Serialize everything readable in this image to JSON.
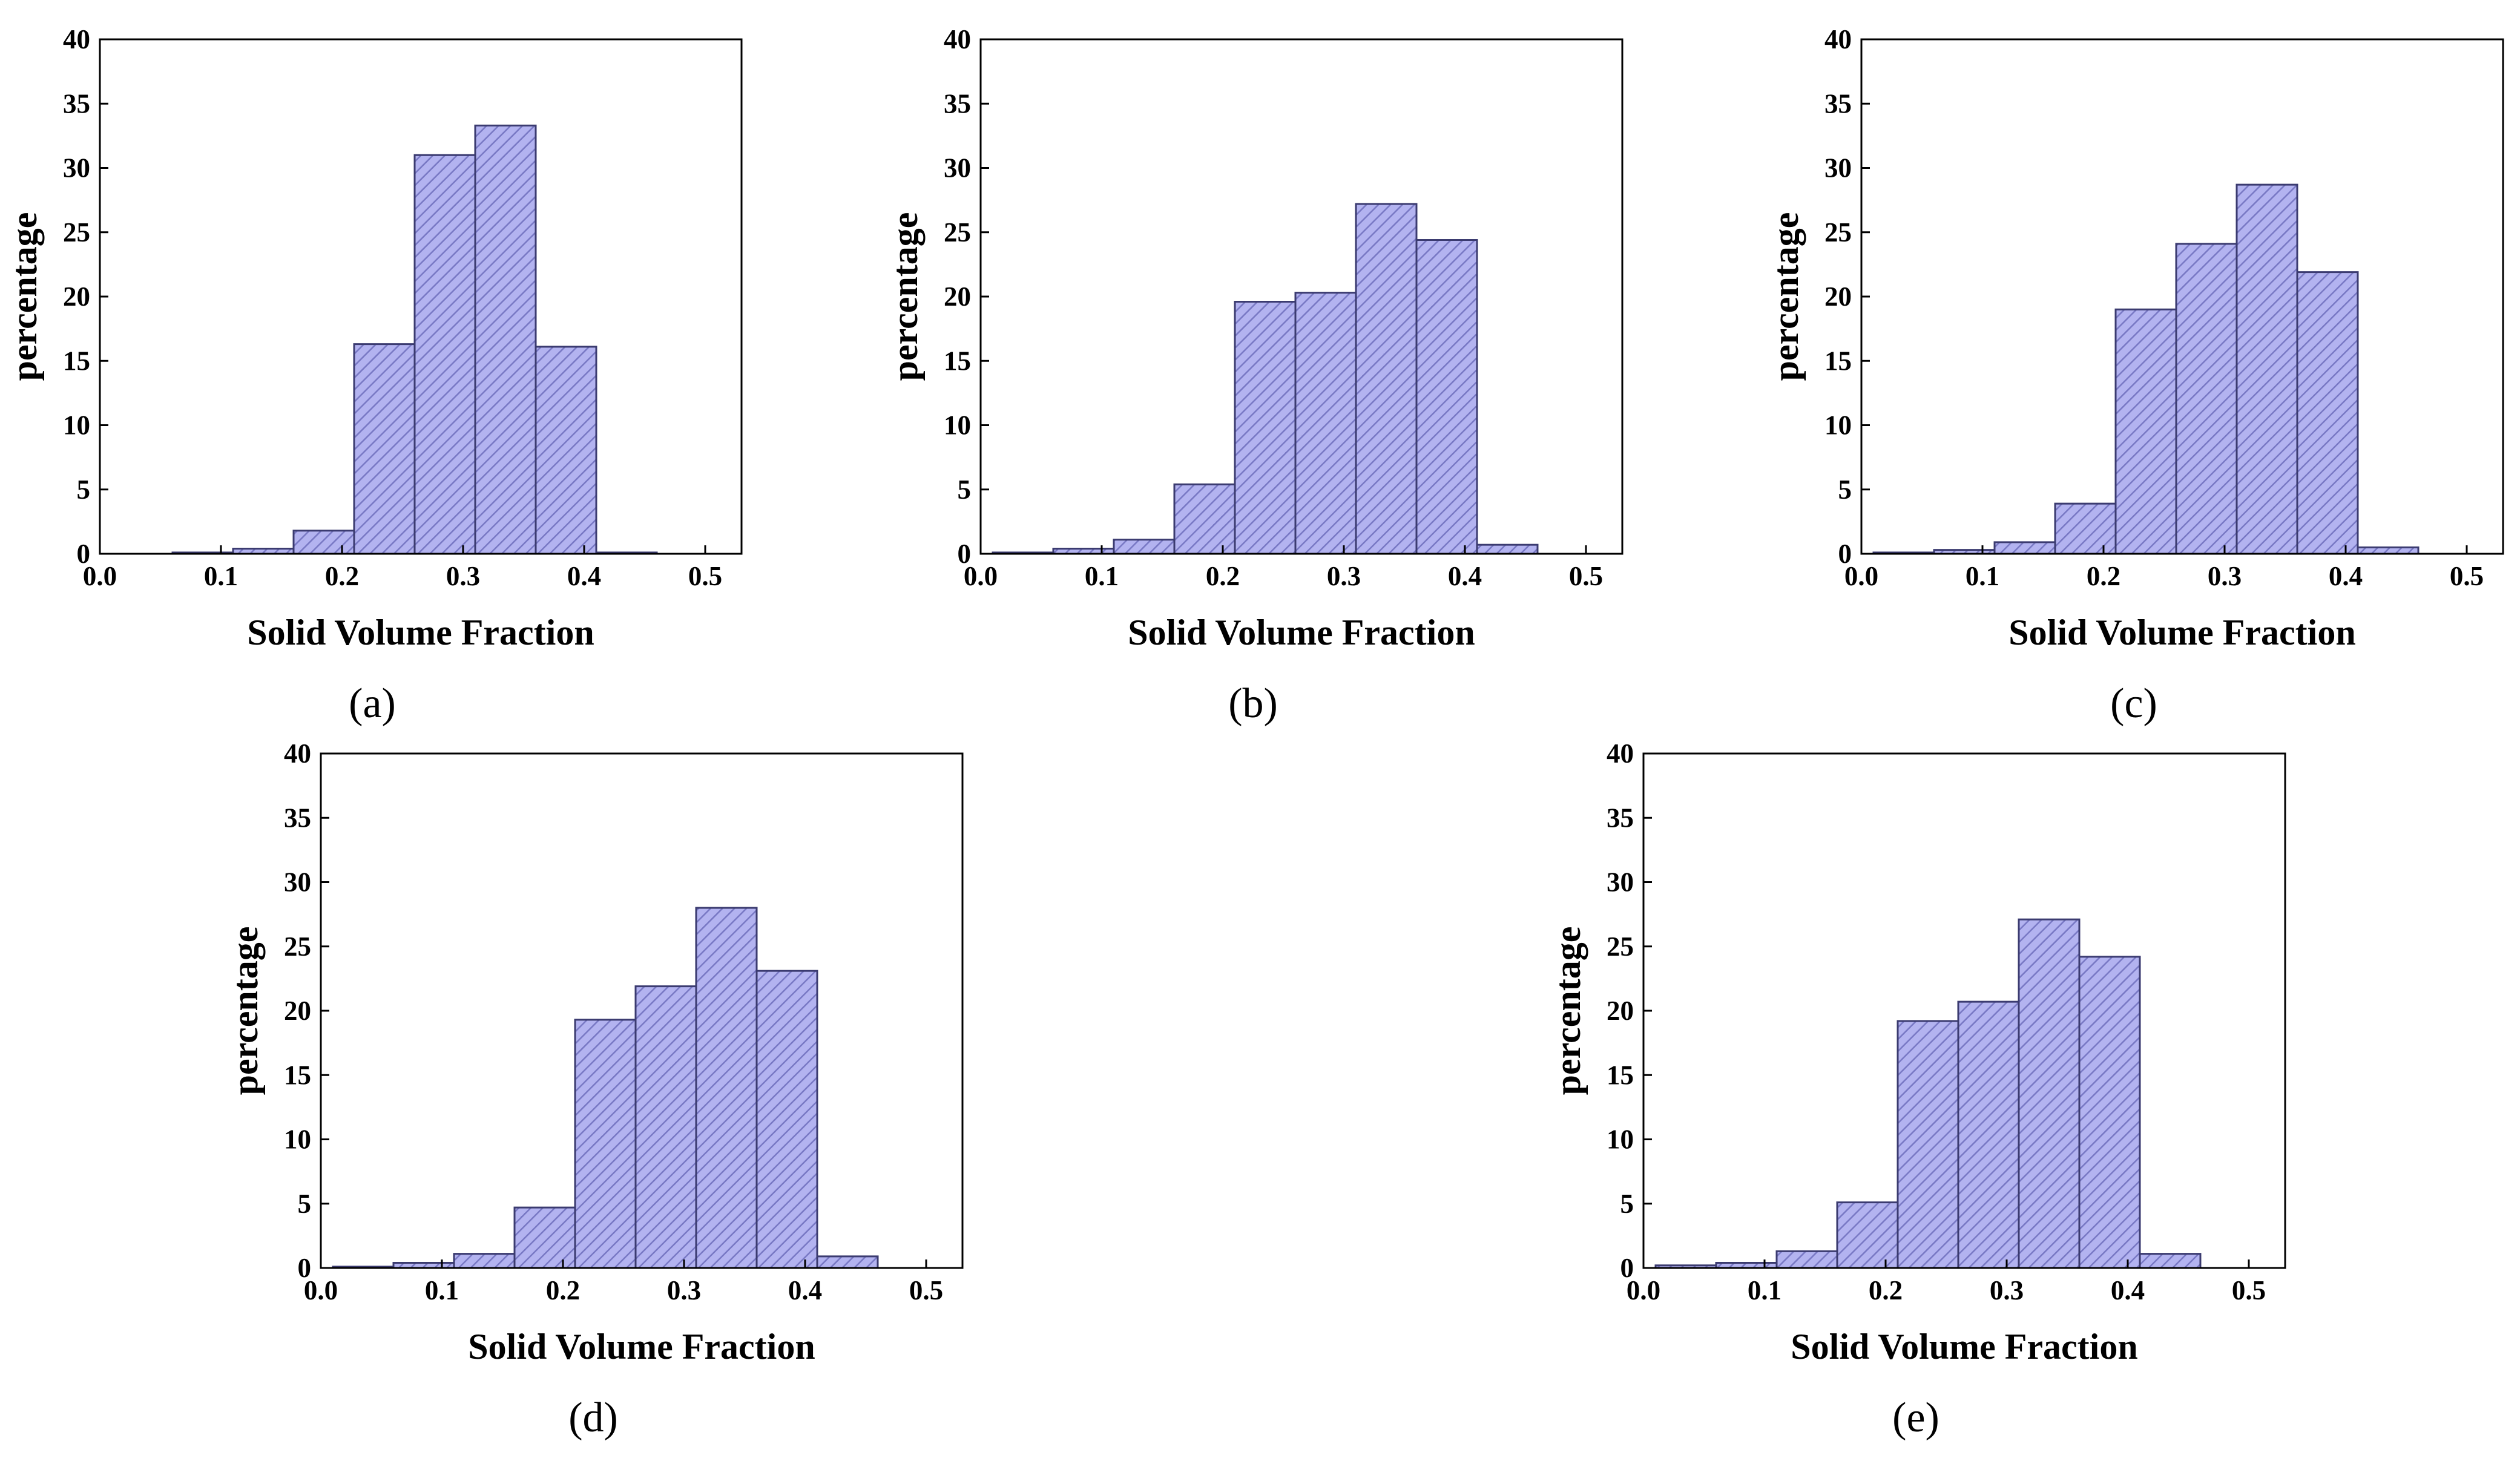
{
  "colors": {
    "bar_fill": "#b3b3f0",
    "bar_edge": "#3b3b70",
    "hatch": "#7878c4",
    "axis": "#000000",
    "background": "#ffffff"
  },
  "chart_data": [
    {
      "type": "bar",
      "panel_label": "(a)",
      "xlabel": "Solid Volume Fraction",
      "ylabel": "percentage",
      "xlim": [
        0.0,
        0.53
      ],
      "ylim": [
        0,
        40
      ],
      "xticks": [
        "0.0",
        "0.1",
        "0.2",
        "0.3",
        "0.4",
        "0.5"
      ],
      "yticks": [
        "0",
        "5",
        "10",
        "15",
        "20",
        "25",
        "30",
        "35",
        "40"
      ],
      "bin_width": 0.05,
      "bin_starts": [
        0.06,
        0.11,
        0.16,
        0.21,
        0.26,
        0.31,
        0.36,
        0.41
      ],
      "values": [
        0.1,
        0.4,
        1.8,
        16.3,
        31.0,
        33.3,
        16.1,
        0.1
      ]
    },
    {
      "type": "bar",
      "panel_label": "(b)",
      "xlabel": "Solid Volume Fraction",
      "ylabel": "percentage",
      "xlim": [
        0.0,
        0.53
      ],
      "ylim": [
        0,
        40
      ],
      "xticks": [
        "0.0",
        "0.1",
        "0.2",
        "0.3",
        "0.4",
        "0.5"
      ],
      "yticks": [
        "0",
        "5",
        "10",
        "15",
        "20",
        "25",
        "30",
        "35",
        "40"
      ],
      "bin_width": 0.05,
      "bin_starts": [
        0.01,
        0.06,
        0.11,
        0.16,
        0.21,
        0.26,
        0.31,
        0.36,
        0.41
      ],
      "values": [
        0.1,
        0.4,
        1.1,
        5.4,
        19.6,
        20.3,
        27.2,
        24.4,
        0.7
      ]
    },
    {
      "type": "bar",
      "panel_label": "(c)",
      "xlabel": "Solid Volume Fraction",
      "ylabel": "percentage",
      "xlim": [
        0.0,
        0.53
      ],
      "ylim": [
        0,
        40
      ],
      "xticks": [
        "0.0",
        "0.1",
        "0.2",
        "0.3",
        "0.4",
        "0.5"
      ],
      "yticks": [
        "0",
        "5",
        "10",
        "15",
        "20",
        "25",
        "30",
        "35",
        "40"
      ],
      "bin_width": 0.05,
      "bin_starts": [
        0.01,
        0.06,
        0.11,
        0.16,
        0.21,
        0.26,
        0.31,
        0.36,
        0.41
      ],
      "values": [
        0.1,
        0.3,
        0.9,
        3.9,
        19.0,
        24.1,
        28.7,
        21.9,
        0.5
      ]
    },
    {
      "type": "bar",
      "panel_label": "(d)",
      "xlabel": "Solid Volume Fraction",
      "ylabel": "percentage",
      "xlim": [
        0.0,
        0.53
      ],
      "ylim": [
        0,
        40
      ],
      "xticks": [
        "0.0",
        "0.1",
        "0.2",
        "0.3",
        "0.4",
        "0.5"
      ],
      "yticks": [
        "0",
        "5",
        "10",
        "15",
        "20",
        "25",
        "30",
        "35",
        "40"
      ],
      "bin_width": 0.05,
      "bin_starts": [
        0.01,
        0.06,
        0.11,
        0.16,
        0.21,
        0.26,
        0.31,
        0.36,
        0.41
      ],
      "values": [
        0.1,
        0.4,
        1.1,
        4.7,
        19.3,
        21.9,
        28.0,
        23.1,
        0.9
      ]
    },
    {
      "type": "bar",
      "panel_label": "(e)",
      "xlabel": "Solid Volume Fraction",
      "ylabel": "percentage",
      "xlim": [
        0.0,
        0.53
      ],
      "ylim": [
        0,
        40
      ],
      "xticks": [
        "0.0",
        "0.1",
        "0.2",
        "0.3",
        "0.4",
        "0.5"
      ],
      "yticks": [
        "0",
        "5",
        "10",
        "15",
        "20",
        "25",
        "30",
        "35",
        "40"
      ],
      "bin_width": 0.05,
      "bin_starts": [
        0.01,
        0.06,
        0.11,
        0.16,
        0.21,
        0.26,
        0.31,
        0.36,
        0.41
      ],
      "values": [
        0.2,
        0.4,
        1.3,
        5.1,
        19.2,
        20.7,
        27.1,
        24.2,
        1.1
      ]
    }
  ]
}
